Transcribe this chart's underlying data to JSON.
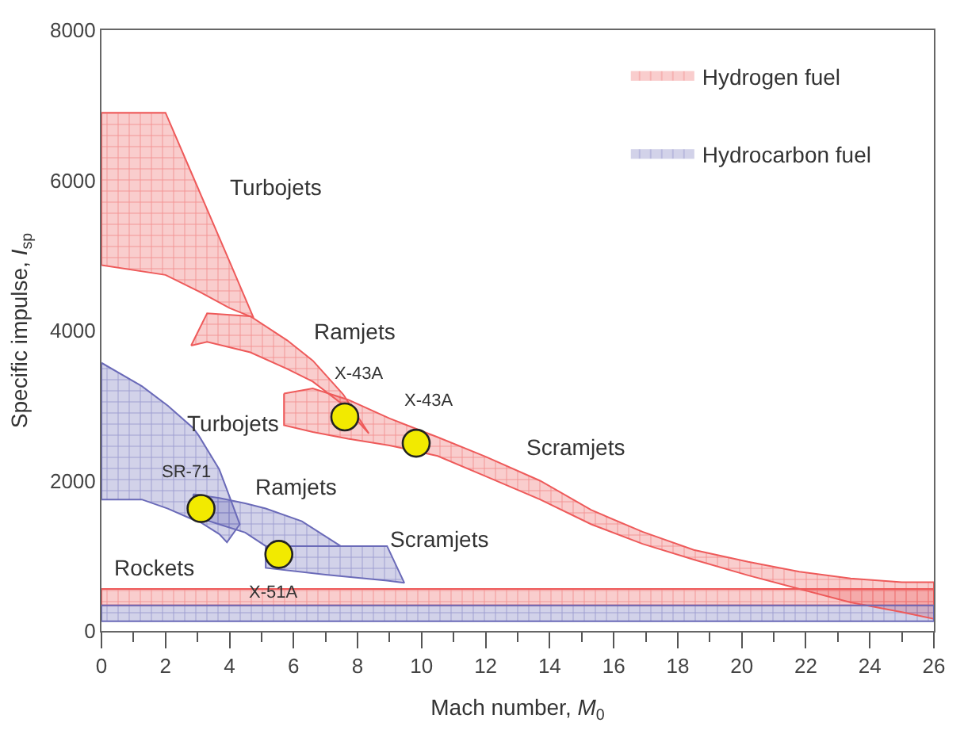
{
  "chart_data": {
    "type": "area",
    "xlabel": "Mach number, M$_{0}$",
    "ylabel": "Specific impulse, I$_{sp}$",
    "xlim": [
      0,
      26
    ],
    "ylim": [
      0,
      8000
    ],
    "xticks": [
      0,
      {
        "value": 1,
        "label": null
      },
      2,
      {
        "value": 3,
        "label": null
      },
      4,
      {
        "value": 5,
        "label": null
      },
      6,
      {
        "value": 7,
        "label": null
      },
      8,
      {
        "value": 9,
        "label": null
      },
      10,
      {
        "value": 11,
        "label": null
      },
      12,
      {
        "value": 13,
        "label": null
      },
      14,
      {
        "value": 15,
        "label": null
      },
      16,
      {
        "value": 17,
        "label": null
      },
      18,
      {
        "value": 19,
        "label": null
      },
      20,
      {
        "value": 21,
        "label": null
      },
      22,
      {
        "value": 23,
        "label": null
      },
      24,
      {
        "value": 25,
        "label": null
      },
      26
    ],
    "yticks": [
      0,
      2000,
      4000,
      6000,
      8000
    ],
    "legend": "top right",
    "series": [
      {
        "name": "Hydrogen fuel",
        "color": "#ee5a5a",
        "x": [
          0,
          2,
          3,
          4,
          4.75
        ],
        "values": [
          null,
          null,
          null,
          null,
          null
        ],
        "lower": [
          4870,
          4740,
          4530,
          4300,
          4170
        ],
        "upper": [
          6900,
          6900,
          5910,
          4920,
          4170
        ]
      },
      {
        "color": "#ee5a5a",
        "x": [
          2.8,
          3.3,
          4.65,
          5.8,
          6.6,
          7.55,
          8.35
        ],
        "values": [
          null,
          null,
          null,
          null,
          null,
          null,
          null
        ],
        "lower": [
          3800,
          3850,
          3710,
          3490,
          3320,
          3010,
          2630
        ],
        "upper": [
          3800,
          4230,
          4190,
          3870,
          3600,
          3150,
          2630
        ]
      },
      {
        "color": "#ee5a5a",
        "x": [
          5.7,
          6.6,
          7.7,
          9,
          10.5,
          12,
          13.7,
          15.3,
          16.9,
          18.5,
          20.2,
          21.8,
          23.4,
          25,
          26
        ],
        "values": [
          null,
          null,
          null,
          null,
          null,
          null,
          null,
          null,
          null,
          null,
          null,
          null,
          null,
          null,
          null
        ],
        "lower": [
          2740,
          2650,
          2560,
          2470,
          2330,
          2060,
          1750,
          1420,
          1160,
          950,
          740,
          560,
          380,
          250,
          160
        ],
        "upper": [
          3160,
          3230,
          3080,
          2830,
          2580,
          2320,
          2000,
          1610,
          1320,
          1080,
          920,
          790,
          700,
          650,
          650
        ]
      },
      {
        "color": "#ee5a5a",
        "x": [
          0,
          26
        ],
        "values": [
          null,
          null
        ],
        "lower": [
          340,
          340
        ],
        "upper": [
          560,
          560
        ]
      },
      {
        "name": "Hydrocarbon fuel",
        "color": "#6a6ab8",
        "x": [
          0,
          1.26,
          2.07,
          2.87,
          3.04,
          3.68,
          3.92,
          4.32
        ],
        "values": [
          null,
          null,
          null,
          null,
          null,
          null,
          null,
          null
        ],
        "lower": [
          1750,
          1750,
          1630,
          1480,
          1460,
          1290,
          1180,
          1420
        ],
        "upper": [
          3570,
          3260,
          3000,
          2700,
          2600,
          2150,
          1880,
          1420
        ]
      },
      {
        "color": "#6a6ab8",
        "x": [
          2.87,
          3.68,
          4.49,
          5.13,
          6.26,
          7.47
        ],
        "values": [
          null,
          null,
          null,
          null,
          null,
          null
        ],
        "lower": [
          1530,
          1420,
          1310,
          1130,
          1130,
          1130
        ],
        "upper": [
          1820,
          1770,
          1700,
          1630,
          1460,
          1130
        ]
      },
      {
        "color": "#6a6ab8",
        "x": [
          5.13,
          7,
          8.92,
          9.46
        ],
        "values": [
          null,
          null,
          null,
          null
        ],
        "lower": [
          840,
          750,
          670,
          640
        ],
        "upper": [
          1130,
          1130,
          1130,
          640
        ]
      },
      {
        "color": "#6a6ab8",
        "x": [
          0,
          26
        ],
        "values": [
          null,
          null
        ],
        "lower": [
          130,
          130
        ],
        "upper": [
          340,
          340
        ]
      },
      {
        "type": "scatter",
        "color": "#f2ea00",
        "marker": "circle",
        "x": [
          3.11,
          5.54,
          7.6,
          9.83
        ],
        "values": [
          1630,
          1020,
          2850,
          2500
        ]
      }
    ],
    "annotations": [
      "Turbojets",
      "Ramjets",
      "Scramjets",
      "Turbojets",
      "Ramjets",
      "Scramjets",
      "Rockets",
      {
        "text": "SR-71",
        "x": 3.11,
        "y": 1630
      },
      {
        "text": "X-51A",
        "x": 5.54,
        "y": 1020
      },
      {
        "text": "X-43A",
        "x": 7.6,
        "y": 2850
      },
      {
        "text": "X-43A",
        "x": 9.83,
        "y": 2500
      }
    ]
  }
}
